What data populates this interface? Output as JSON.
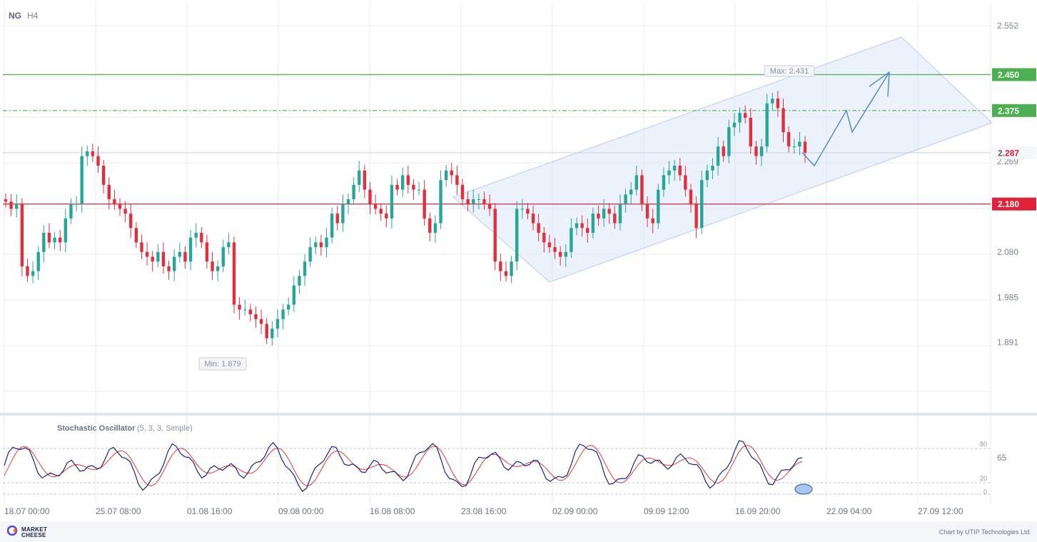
{
  "header": {
    "symbol": "NG",
    "timeframe": "H4"
  },
  "colors": {
    "bull": "#26a69a",
    "bear": "#e0303e",
    "grid": "#e6e9f2",
    "channel_fill": "#dde8f8",
    "channel_stroke": "#b9cdee",
    "resistance": "#4caf50",
    "support": "#e0233a",
    "forecast": "#4a86c8",
    "stoch_k": "#1a237e",
    "stoch_d": "#e53935"
  },
  "chart_data": {
    "type": "candlestick",
    "y_axis": {
      "ticks": [
        "2.552",
        "2.450",
        "2.375",
        "2.269",
        "2.180",
        "2.080",
        "1.985",
        "1.891"
      ],
      "range": [
        1.78,
        2.6
      ]
    },
    "x_axis": {
      "tick_labels": [
        "18.07 00:00",
        "25.07 08:00",
        "01.08 16:00",
        "09.08 00:00",
        "16.08 08:00",
        "23.08 16:00",
        "02.09 00:00",
        "09.09 12:00",
        "16.09 20:00",
        "22.09 04:00",
        "27.09 12:00"
      ]
    },
    "ohlc_close": [
      2.185,
      2.17,
      2.18,
      2.05,
      2.03,
      2.04,
      2.08,
      2.12,
      2.1,
      2.11,
      2.1,
      2.15,
      2.18,
      2.18,
      2.28,
      2.29,
      2.28,
      2.26,
      2.22,
      2.19,
      2.18,
      2.17,
      2.16,
      2.13,
      2.1,
      2.08,
      2.07,
      2.06,
      2.08,
      2.05,
      2.04,
      2.07,
      2.08,
      2.06,
      2.11,
      2.12,
      2.1,
      2.06,
      2.04,
      2.05,
      2.09,
      2.1,
      1.97,
      1.96,
      1.96,
      1.95,
      1.94,
      1.93,
      1.9,
      1.92,
      1.94,
      1.96,
      1.97,
      2.01,
      2.03,
      2.06,
      2.09,
      2.1,
      2.09,
      2.11,
      2.16,
      2.14,
      2.18,
      2.19,
      2.22,
      2.25,
      2.21,
      2.18,
      2.17,
      2.16,
      2.15,
      2.22,
      2.21,
      2.24,
      2.22,
      2.21,
      2.21,
      2.15,
      2.12,
      2.14,
      2.23,
      2.25,
      2.24,
      2.22,
      2.19,
      2.18,
      2.19,
      2.19,
      2.18,
      2.17,
      2.06,
      2.04,
      2.03,
      2.06,
      2.17,
      2.17,
      2.16,
      2.14,
      2.12,
      2.1,
      2.09,
      2.08,
      2.07,
      2.08,
      2.13,
      2.14,
      2.13,
      2.12,
      2.16,
      2.15,
      2.17,
      2.16,
      2.14,
      2.18,
      2.2,
      2.21,
      2.24,
      2.18,
      2.15,
      2.14,
      2.21,
      2.24,
      2.25,
      2.26,
      2.24,
      2.21,
      2.18,
      2.13,
      2.23,
      2.25,
      2.26,
      2.3,
      2.28,
      2.34,
      2.35,
      2.37,
      2.36,
      2.3,
      2.28,
      2.3,
      2.39,
      2.4,
      2.38,
      2.33,
      2.3,
      2.3,
      2.31,
      2.287
    ],
    "min_label": "Min: 1.879",
    "max_label": "Max: 2.431",
    "levels": [
      {
        "value": 2.45,
        "label": "2.450",
        "kind": "resistance"
      },
      {
        "value": 2.375,
        "label": "2.375",
        "kind": "resistance"
      },
      {
        "value": 2.18,
        "label": "2.180",
        "kind": "support"
      }
    ],
    "current_price": {
      "value": 2.287,
      "label_prefix": "2.",
      "label_suffix": "287"
    },
    "forecast_path": [
      [
        2.287,
        0
      ],
      [
        2.26,
        1
      ],
      [
        2.375,
        2
      ],
      [
        2.33,
        3
      ],
      [
        2.455,
        4
      ]
    ]
  },
  "oscillator": {
    "title": "Stochastic Oscillator",
    "params": "(5, 3, 3, Simple)",
    "right_value": "65",
    "level_labels": {
      "upper": "80",
      "lower": "20",
      "zero": "0"
    }
  },
  "footer": {
    "logo_line1": "MARKET",
    "logo_line2": "CHEESE",
    "credit": "Chart by UTIP Technologies Ltd."
  }
}
